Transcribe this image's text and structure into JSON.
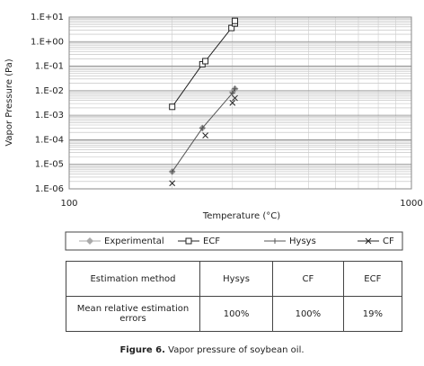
{
  "chart_data": {
    "type": "scatter",
    "x_label": "Temperature (°C)",
    "y_label": "Vapor Pressure (Pa)",
    "xlog": true,
    "ylog": true,
    "grid": true,
    "minor_grid": true,
    "xlim": [
      100,
      1000
    ],
    "xticks": [
      100,
      1000
    ],
    "ylim": [
      1e-06,
      10
    ],
    "yticks": [
      {
        "value": 10,
        "label": "1.E+01"
      },
      {
        "value": 1,
        "label": "1.E+00"
      },
      {
        "value": 0.1,
        "label": "1.E-01"
      },
      {
        "value": 0.01,
        "label": "1.E-02"
      },
      {
        "value": 0.001,
        "label": "1.E-03"
      },
      {
        "value": 0.0001,
        "label": "1.E-04"
      },
      {
        "value": 1e-05,
        "label": "1.E-05"
      },
      {
        "value": 1e-06,
        "label": "1.E-06"
      }
    ],
    "series": [
      {
        "name": "Experimental",
        "color": "#aaaaaa",
        "marker": "diamond",
        "line": false,
        "x": [
          200,
          245,
          300,
          305
        ],
        "values": [
          5e-06,
          0.0003,
          0.009,
          0.012
        ]
      },
      {
        "name": "ECF",
        "color": "#222222",
        "marker": "square",
        "line": true,
        "x": [
          200,
          245,
          250,
          298,
          305,
          305
        ],
        "values": [
          0.0022,
          0.12,
          0.16,
          3.6,
          5.5,
          7
        ]
      },
      {
        "name": "Hysys",
        "color": "#555555",
        "marker": "dash",
        "line": true,
        "x": [
          200,
          245,
          300,
          305
        ],
        "values": [
          5e-06,
          0.0003,
          0.008,
          0.012
        ]
      },
      {
        "name": "CF",
        "color": "#222222",
        "marker": "x",
        "line": false,
        "x": [
          200,
          250,
          300,
          305
        ],
        "values": [
          1.7e-06,
          0.00015,
          0.0032,
          0.005
        ]
      }
    ]
  },
  "table": {
    "header": [
      "Estimation method",
      "Hysys",
      "CF",
      "ECF"
    ],
    "rows": [
      [
        "Mean relative estimation errors",
        "100%",
        "100%",
        "19%"
      ]
    ]
  },
  "caption": {
    "label": "Figure 6.",
    "text": "Vapor pressure of soybean oil."
  }
}
